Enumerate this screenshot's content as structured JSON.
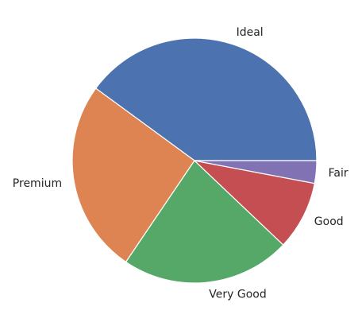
{
  "chart_data": {
    "type": "pie",
    "title": "",
    "categories": [
      "Ideal",
      "Premium",
      "Very Good",
      "Good",
      "Fair"
    ],
    "values": [
      39.95,
      25.57,
      22.4,
      9.1,
      2.98
    ],
    "colors": [
      "#4c72b0",
      "#dd8452",
      "#55a868",
      "#c44e52",
      "#8172b3"
    ],
    "start_angle_deg": 0,
    "direction": "counterclockwise",
    "legend": "none"
  }
}
